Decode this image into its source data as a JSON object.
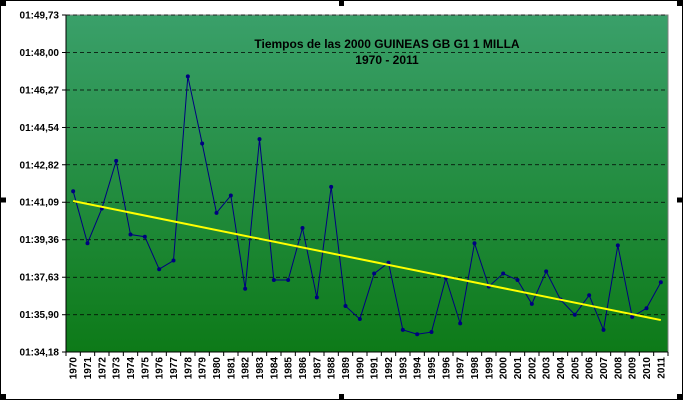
{
  "chart_data": {
    "type": "line",
    "title": "Tiempos de las 2000 GUINEAS GB G1 1 MILLA",
    "subtitle": "1970 - 2011",
    "xlabel": "",
    "ylabel": "",
    "y_unit": "seconds",
    "ylim": [
      94.18,
      109.73
    ],
    "y_ticks": [
      {
        "value": 94.18,
        "label": "01:34,18"
      },
      {
        "value": 95.9,
        "label": "01:35,90"
      },
      {
        "value": 97.63,
        "label": "01:37,63"
      },
      {
        "value": 99.36,
        "label": "01:39,36"
      },
      {
        "value": 101.09,
        "label": "01:41,09"
      },
      {
        "value": 102.82,
        "label": "01:42,82"
      },
      {
        "value": 104.54,
        "label": "01:44,54"
      },
      {
        "value": 106.27,
        "label": "01:46,27"
      },
      {
        "value": 108.0,
        "label": "01:48,00"
      },
      {
        "value": 109.73,
        "label": "01:49,73"
      }
    ],
    "categories": [
      "1970",
      "1971",
      "1972",
      "1973",
      "1974",
      "1975",
      "1976",
      "1977",
      "1978",
      "1979",
      "1980",
      "1981",
      "1982",
      "1983",
      "1984",
      "1985",
      "1986",
      "1987",
      "1988",
      "1989",
      "1990",
      "1991",
      "1992",
      "1993",
      "1994",
      "1995",
      "1996",
      "1997",
      "1998",
      "1999",
      "2000",
      "2001",
      "2002",
      "2003",
      "2004",
      "2005",
      "2006",
      "2007",
      "2008",
      "2009",
      "2010",
      "2011"
    ],
    "series": [
      {
        "values": [
          101.6,
          99.2,
          100.8,
          103.0,
          99.6,
          99.5,
          98.0,
          98.4,
          106.9,
          103.8,
          100.6,
          101.4,
          97.1,
          104.0,
          97.5,
          97.5,
          99.9,
          96.7,
          101.8,
          96.3,
          95.7,
          97.8,
          98.3,
          95.2,
          95.0,
          95.1,
          97.6,
          95.5,
          99.2,
          97.2,
          97.8,
          97.5,
          96.4,
          97.9,
          96.6,
          95.9,
          96.8,
          95.2,
          99.1,
          95.8,
          96.2,
          97.4
        ],
        "color": "#000080",
        "marker": "circle"
      }
    ],
    "trendline": {
      "type": "linear",
      "color": "#ffff00"
    },
    "grid": {
      "y": true,
      "x": false,
      "style": "dashed",
      "color": "#000000"
    },
    "background": {
      "gradient_top": "#3aa06a",
      "gradient_bottom": "#0d7a18"
    },
    "legend": "none"
  }
}
